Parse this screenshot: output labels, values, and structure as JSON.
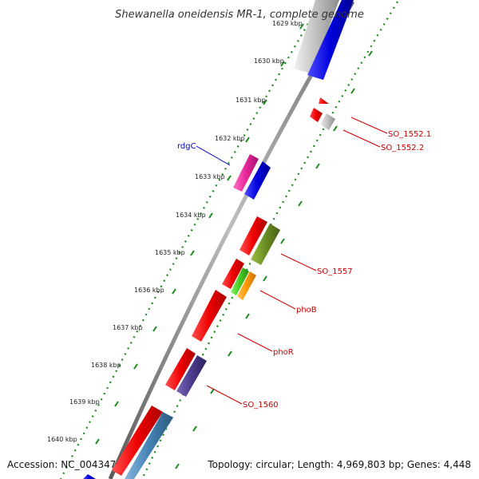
{
  "map": {
    "title": "Shewanella oneidensis MR-1, complete genome",
    "accession": "Accession: NC_004347",
    "summary": "Topology: circular; Length: 4,969,803 bp; Genes: 4,448",
    "backbone_color": "#808080",
    "tick_color": "#1a8a1a",
    "ticks": [
      {
        "label": "1629 kbp"
      },
      {
        "label": "1630 kbp"
      },
      {
        "label": "1631 kbp"
      },
      {
        "label": "1632 kbp"
      },
      {
        "label": "1633 kbp"
      },
      {
        "label": "1634 kbp"
      },
      {
        "label": "1635 kbp"
      },
      {
        "label": "1636 kbp"
      },
      {
        "label": "1637 kbp"
      },
      {
        "label": "1638 kbp"
      },
      {
        "label": "1639 kbp"
      },
      {
        "label": "1640 kbp"
      }
    ],
    "gene_labels": [
      {
        "text": "rdgC",
        "color": "#0000cc"
      },
      {
        "text": "SO_1552.1",
        "color": "#cc0000"
      },
      {
        "text": "SO_1552.2",
        "color": "#cc0000"
      },
      {
        "text": "SO_1557",
        "color": "#cc0000"
      },
      {
        "text": "phoB",
        "color": "#cc0000"
      },
      {
        "text": "phoR",
        "color": "#cc0000"
      },
      {
        "text": "SO_1560",
        "color": "#cc0000"
      }
    ],
    "feature_colors": {
      "red": "#ee0000",
      "blue": "#0000dd",
      "gray": "#c0c0c0",
      "magenta": "#e8279b",
      "olive": "#6b8e23",
      "green": "#44cc22",
      "orange": "#ff9900",
      "purple": "#4b3a8c",
      "steelblue": "#4682b4"
    }
  }
}
